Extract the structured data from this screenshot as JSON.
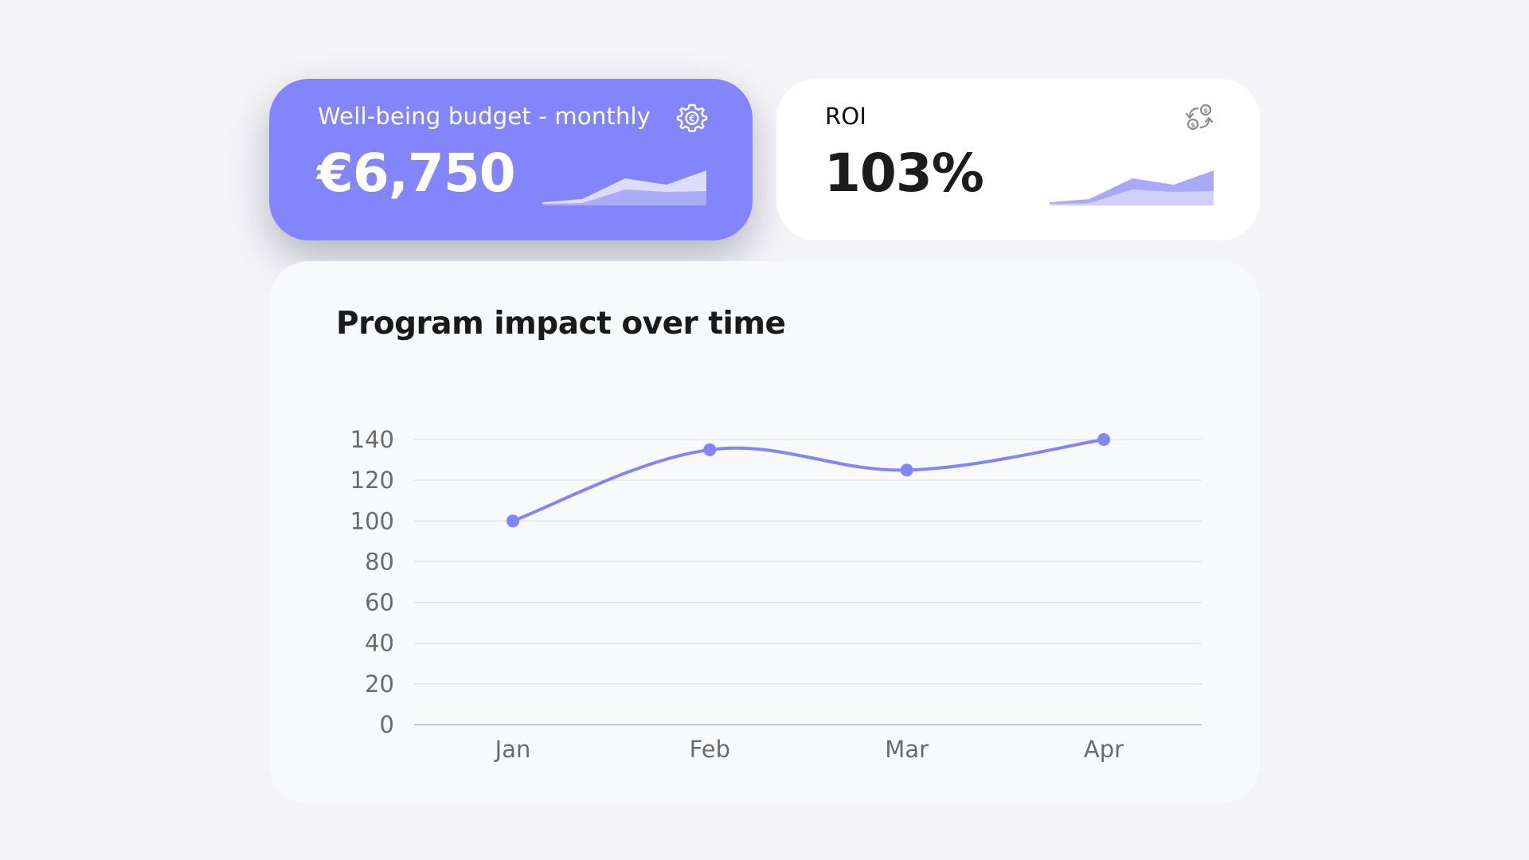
{
  "budget_card": {
    "label": "Well-being budget - monthly",
    "value": "€6,750",
    "icon": "gear-euro-icon",
    "accent": "#8385fb"
  },
  "roi_card": {
    "label": "ROI",
    "value": "103%",
    "icon": "currency-exchange-icon"
  },
  "chart_data": {
    "type": "line",
    "title": "Program impact over time",
    "categories": [
      "Jan",
      "Feb",
      "Mar",
      "Apr"
    ],
    "series": [
      {
        "name": "Program impact",
        "values": [
          100,
          135,
          125,
          140
        ],
        "color": "#8385fb"
      }
    ],
    "y_ticks": [
      0,
      20,
      40,
      60,
      80,
      100,
      120,
      140
    ],
    "ylim": [
      0,
      140
    ],
    "xlabel": "",
    "ylabel": "",
    "grid": true,
    "legend": "none"
  }
}
